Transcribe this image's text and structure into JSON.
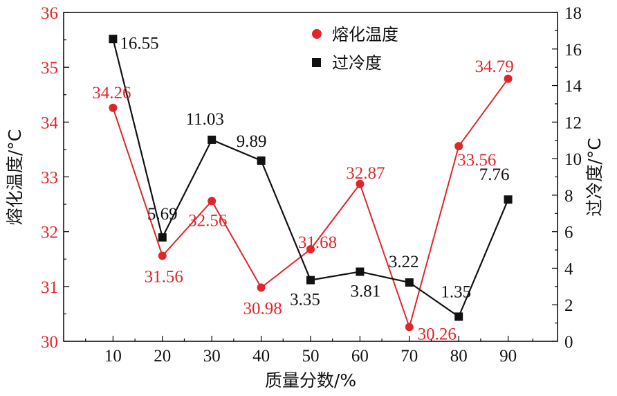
{
  "chart_data": {
    "type": "line",
    "xlabel": "质量分数/%",
    "ylabel_left": "熔化温度/°C",
    "ylabel_right": "过冷度/°C",
    "x": [
      10,
      20,
      30,
      40,
      50,
      60,
      70,
      80,
      90
    ],
    "x_ticks": [
      "10",
      "20",
      "30",
      "40",
      "50",
      "60",
      "70",
      "80",
      "90"
    ],
    "xlim": [
      0,
      100
    ],
    "ylim_left": [
      30,
      36
    ],
    "ylim_right": [
      0,
      18
    ],
    "y_ticks_left": [
      "30",
      "31",
      "32",
      "33",
      "34",
      "35",
      "36"
    ],
    "y_ticks_right": [
      "0",
      "2",
      "4",
      "6",
      "8",
      "10",
      "12",
      "14",
      "16",
      "18"
    ],
    "grid": false,
    "legend_position": "top-center",
    "series": [
      {
        "name": "熔化温度",
        "axis": "left",
        "color": "#e0262b",
        "marker": "circle",
        "values": [
          34.26,
          31.56,
          32.56,
          30.98,
          31.68,
          32.87,
          30.26,
          33.56,
          34.79
        ],
        "labels": [
          "34.26",
          "31.56",
          "32.56",
          "30.98",
          "31.68",
          "32.87",
          "30.26",
          "33.56",
          "34.79"
        ]
      },
      {
        "name": "过冷度",
        "axis": "right",
        "color": "#111111",
        "marker": "square",
        "values": [
          16.55,
          5.69,
          11.03,
          9.89,
          3.35,
          3.81,
          3.22,
          1.35,
          7.76
        ],
        "labels": [
          "16.55",
          "5.69",
          "11.03",
          "9.89",
          "3.35",
          "3.81",
          "3.22",
          "1.35",
          "7.76"
        ]
      }
    ]
  }
}
